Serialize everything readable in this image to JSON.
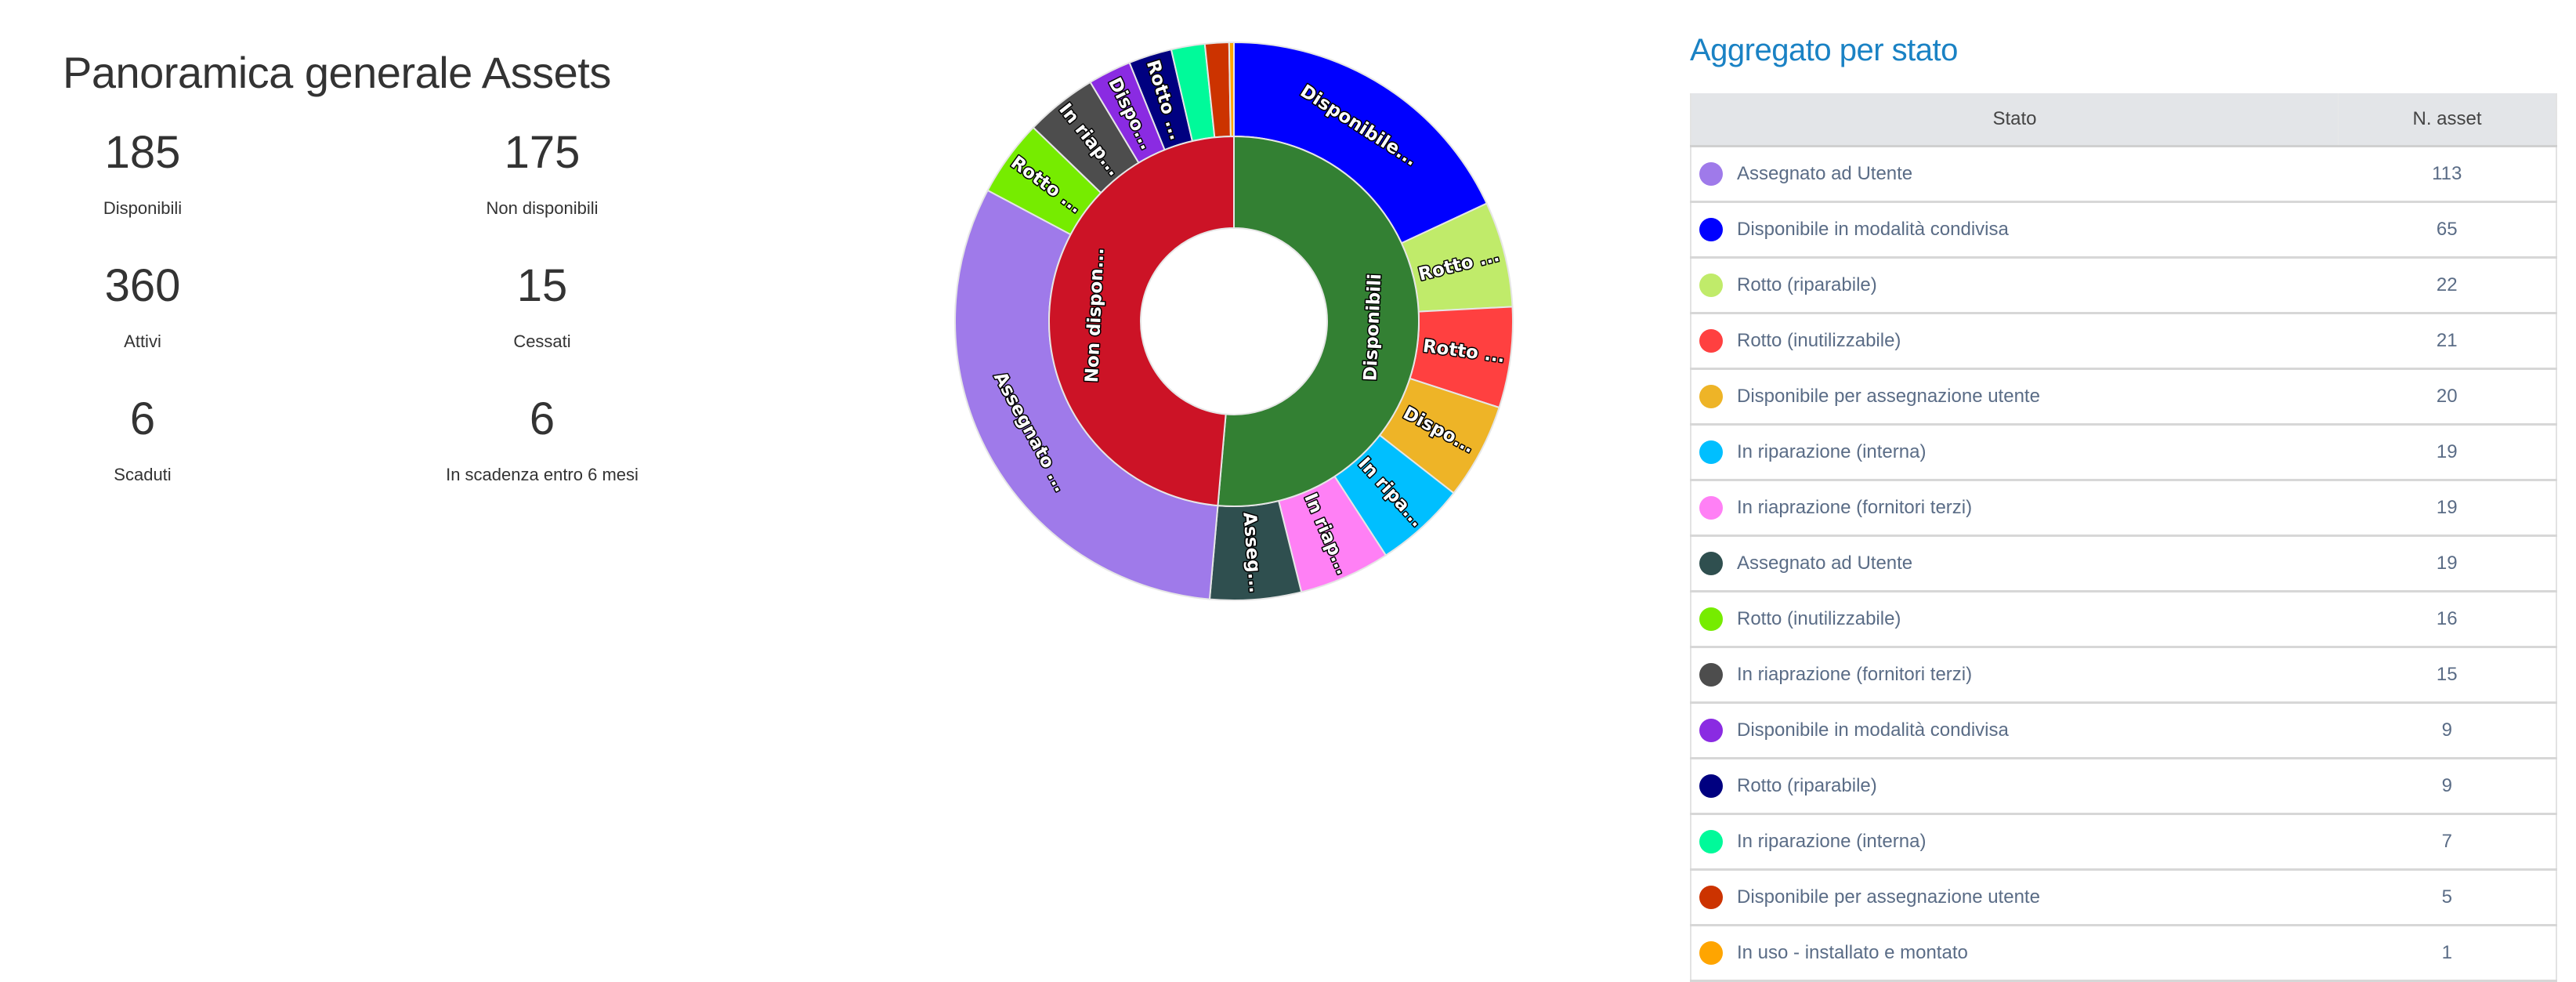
{
  "overview": {
    "title": "Panoramica generale Assets",
    "stats": [
      {
        "value": "185",
        "label": "Disponibili"
      },
      {
        "value": "175",
        "label": "Non disponibili"
      },
      {
        "value": "360",
        "label": "Attivi"
      },
      {
        "value": "15",
        "label": "Cessati"
      },
      {
        "value": "6",
        "label": "Scaduti"
      },
      {
        "value": "6",
        "label": "In scadenza entro 6 mesi"
      }
    ]
  },
  "chart_data": {
    "type": "sunburst",
    "inner": [
      {
        "name": "Disponibili",
        "label": "Disponibili",
        "value": 185,
        "color": "#338033"
      },
      {
        "name": "Non disponibili",
        "label": "Non dispon...",
        "value": 175,
        "color": "#cc1326"
      }
    ],
    "outer": [
      {
        "parent": 0,
        "name": "Disponibile in modalità condivisa",
        "label": "Disponibile...",
        "value": 65,
        "color": "#0000ff"
      },
      {
        "parent": 0,
        "name": "Rotto (riparabile)",
        "label": "Rotto ...",
        "value": 22,
        "color": "#c0eb6a"
      },
      {
        "parent": 0,
        "name": "Rotto (inutilizzabile)",
        "label": "Rotto ...",
        "value": 21,
        "color": "#ff4040"
      },
      {
        "parent": 0,
        "name": "Disponibile per assegnazione utente",
        "label": "Dispo...",
        "value": 20,
        "color": "#eeb427"
      },
      {
        "parent": 0,
        "name": "In riparazione (interna)",
        "label": "In ripa...",
        "value": 19,
        "color": "#00bfff"
      },
      {
        "parent": 0,
        "name": "In riaprazione (fornitori terzi)",
        "label": "In riap...",
        "value": 19,
        "color": "#ff80f5"
      },
      {
        "parent": 0,
        "name": "Assegnato ad Utente",
        "label": "Asseg...",
        "value": 19,
        "color": "#2f4f4f"
      },
      {
        "parent": 1,
        "name": "Assegnato ad Utente",
        "label": "Assegnato ...",
        "value": 113,
        "color": "#9f7aea"
      },
      {
        "parent": 1,
        "name": "Rotto (inutilizzabile)",
        "label": "Rotto ...",
        "value": 16,
        "color": "#76ec00"
      },
      {
        "parent": 1,
        "name": "In riaprazione (fornitori terzi)",
        "label": "In riap...",
        "value": 15,
        "color": "#4d4d4d"
      },
      {
        "parent": 1,
        "name": "Disponibile in modalità condivisa",
        "label": "Dispo...",
        "value": 9,
        "color": "#8a2be2"
      },
      {
        "parent": 1,
        "name": "Rotto (riparabile)",
        "label": "Rotto ...",
        "value": 9,
        "color": "#000080"
      },
      {
        "parent": 1,
        "name": "In riparazione (interna)",
        "label": "",
        "value": 7,
        "color": "#00fa9a"
      },
      {
        "parent": 1,
        "name": "Disponibile per assegnazione utente",
        "label": "",
        "value": 5,
        "color": "#cc3300"
      },
      {
        "parent": 1,
        "name": "In uso - installato e montato",
        "label": "",
        "value": 1,
        "color": "#ffa500"
      }
    ]
  },
  "table": {
    "title": "Aggregato per stato",
    "headers": [
      "Stato",
      "N. asset"
    ],
    "rows": [
      {
        "label": "Assegnato ad Utente",
        "value": "113",
        "color": "#9f7aea"
      },
      {
        "label": "Disponibile in modalità condivisa",
        "value": "65",
        "color": "#0000ff"
      },
      {
        "label": "Rotto (riparabile)",
        "value": "22",
        "color": "#c0eb6a"
      },
      {
        "label": "Rotto (inutilizzabile)",
        "value": "21",
        "color": "#ff4040"
      },
      {
        "label": "Disponibile per assegnazione utente",
        "value": "20",
        "color": "#eeb427"
      },
      {
        "label": "In riparazione (interna)",
        "value": "19",
        "color": "#00bfff"
      },
      {
        "label": "In riaprazione (fornitori terzi)",
        "value": "19",
        "color": "#ff80f5"
      },
      {
        "label": "Assegnato ad Utente",
        "value": "19",
        "color": "#2f4f4f"
      },
      {
        "label": "Rotto (inutilizzabile)",
        "value": "16",
        "color": "#76ec00"
      },
      {
        "label": "In riaprazione (fornitori terzi)",
        "value": "15",
        "color": "#4d4d4d"
      },
      {
        "label": "Disponibile in modalità condivisa",
        "value": "9",
        "color": "#8a2be2"
      },
      {
        "label": "Rotto (riparabile)",
        "value": "9",
        "color": "#000080"
      },
      {
        "label": "In riparazione (interna)",
        "value": "7",
        "color": "#00fa9a"
      },
      {
        "label": "Disponibile per assegnazione utente",
        "value": "5",
        "color": "#cc3300"
      },
      {
        "label": "In uso - installato e montato",
        "value": "1",
        "color": "#ffa500"
      }
    ]
  }
}
